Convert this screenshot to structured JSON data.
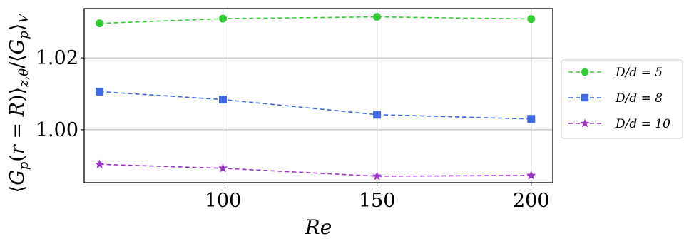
{
  "chart_data": {
    "type": "line",
    "xlabel": "Re",
    "ylabel": "⟨G_p(r = R)⟩_{z,θ}/⟨G_p⟩_V",
    "xlim": [
      55,
      207
    ],
    "ylim": [
      0.9853,
      1.0337
    ],
    "x_ticks": [
      {
        "value": 100,
        "label": "100"
      },
      {
        "value": 150,
        "label": "150"
      },
      {
        "value": 200,
        "label": "200"
      }
    ],
    "y_ticks": [
      {
        "value": 1.0,
        "label": "1.00"
      },
      {
        "value": 1.02,
        "label": "1.02"
      }
    ],
    "grid": true,
    "legend_position": "outside-right",
    "series": [
      {
        "name": "D/d = 5",
        "color": "#32cd32",
        "marker": "circle",
        "x": [
          60,
          100,
          150,
          200
        ],
        "y": [
          1.0296,
          1.0309,
          1.0314,
          1.0308
        ]
      },
      {
        "name": "D/d = 8",
        "color": "#4169e1",
        "marker": "square",
        "x": [
          60,
          100,
          150,
          200
        ],
        "y": [
          1.0106,
          1.0084,
          1.0042,
          1.003
        ]
      },
      {
        "name": "D/d = 10",
        "color": "#9932cc",
        "marker": "star",
        "x": [
          60,
          100,
          150,
          200
        ],
        "y": [
          0.9904,
          0.9893,
          0.9871,
          0.9873
        ]
      }
    ]
  }
}
